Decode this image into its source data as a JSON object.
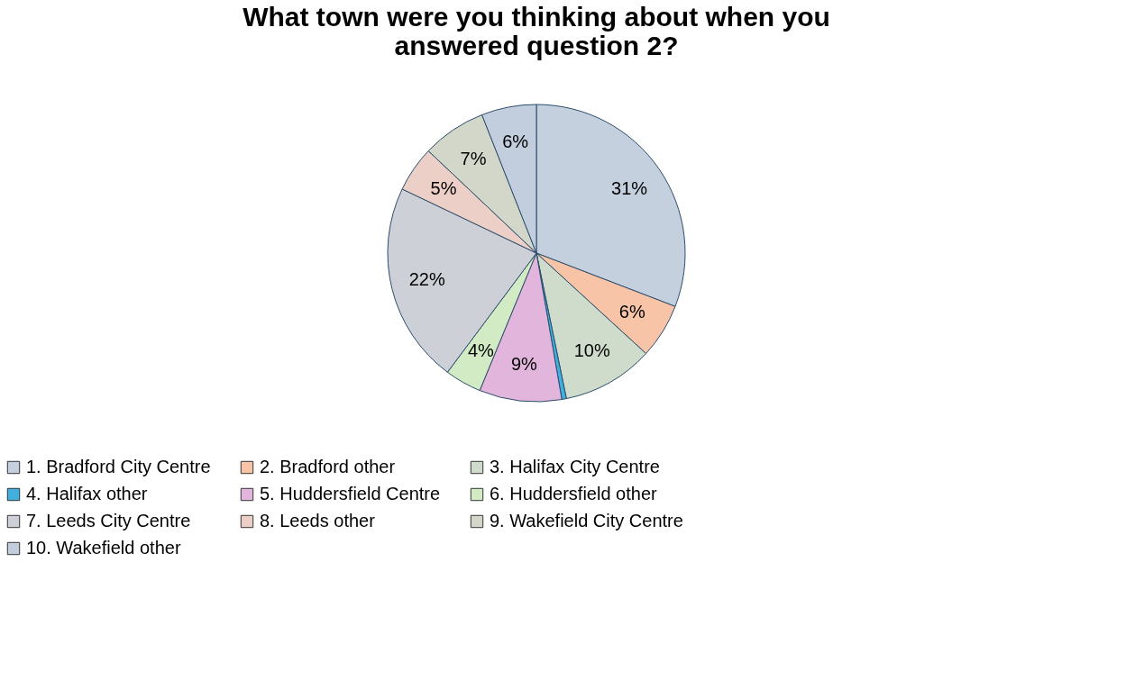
{
  "chart_data": {
    "type": "pie",
    "title": "What town were you thinking about when you answered question 2?",
    "categories": [
      "1. Bradford City Centre",
      "2. Bradford other",
      "3. Halifax City Centre",
      "4. Halifax other",
      "5. Huddersfield Centre",
      "6. Huddersfield other",
      "7. Leeds City Centre",
      "8. Leeds other",
      "9. Wakefield City Centre",
      "10. Wakefield other"
    ],
    "values": [
      31,
      6,
      10,
      0.5,
      9,
      4,
      22,
      5,
      7,
      6
    ],
    "value_labels": [
      "31%",
      "6%",
      "10%",
      null,
      "9%",
      "4%",
      "22%",
      "5%",
      "7%",
      "6%"
    ],
    "colors": [
      "#c5d0de",
      "#f8c4a8",
      "#cfdccb",
      "#3fb0e0",
      "#e2b6dc",
      "#d2ebc4",
      "#cdd0d6",
      "#eccfc6",
      "#d3d7c9",
      "#c2cedd"
    ],
    "legend": "bottom"
  }
}
